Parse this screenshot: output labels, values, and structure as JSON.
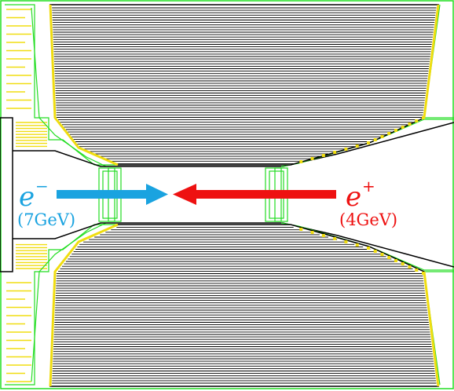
{
  "figure": {
    "description_free": true,
    "electron": {
      "symbol": "e",
      "superscript": "−",
      "energy": "(7GeV)",
      "color": "#1aa3e0"
    },
    "positron": {
      "symbol": "e",
      "superscript": "+",
      "energy": "(4GeV)",
      "color": "#ee1111"
    },
    "colors": {
      "outline": "#22dd22",
      "yellow": "#f0dd10",
      "layer_line": "#000000",
      "background": "#ffffff"
    }
  }
}
